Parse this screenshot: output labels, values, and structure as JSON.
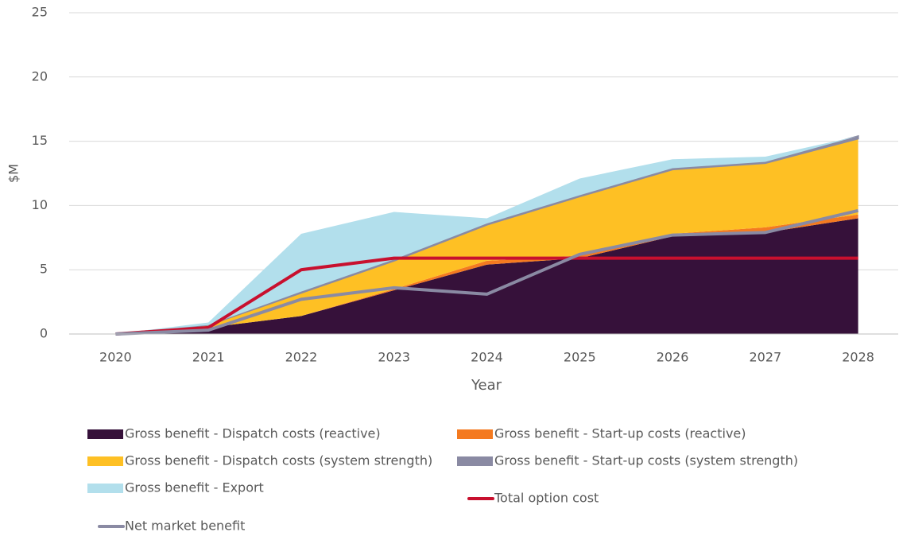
{
  "chart_data": {
    "type": "stacked_area_line",
    "x_label": "Year",
    "y_label": "$M",
    "categories": [
      "2020",
      "2021",
      "2022",
      "2023",
      "2024",
      "2025",
      "2026",
      "2027",
      "2028"
    ],
    "ylim": [
      0,
      25
    ],
    "yticks": [
      0,
      5,
      10,
      15,
      20,
      25
    ],
    "grid": true,
    "series": [
      {
        "name": "Gross benefit - Dispatch costs (reactive)",
        "kind": "area",
        "color": "#36113a",
        "values": [
          0,
          0.5,
          1.4,
          3.4,
          5.4,
          5.9,
          7.6,
          7.9,
          9.0
        ]
      },
      {
        "name": "Gross benefit - Start-up costs (reactive)",
        "kind": "area",
        "color": "#f47a20",
        "values": [
          0,
          0,
          0,
          0.1,
          0.3,
          0.2,
          0.2,
          0.4,
          0.3
        ]
      },
      {
        "name": "Gross benefit - Dispatch costs (system strength)",
        "kind": "area",
        "color": "#fec024",
        "values": [
          0,
          0.2,
          1.8,
          2.2,
          2.8,
          4.6,
          5.0,
          5.0,
          5.9
        ]
      },
      {
        "name": "Gross benefit - Start-up costs (system strength)",
        "kind": "area",
        "color": "#8a8aa3",
        "values": [
          0,
          0,
          0.1,
          0.1,
          0.1,
          0.1,
          0.1,
          0.1,
          0.2
        ]
      },
      {
        "name": "Gross benefit - Export",
        "kind": "area",
        "color": "#b2dfec",
        "values": [
          0,
          0.2,
          4.5,
          3.7,
          0.4,
          1.3,
          0.7,
          0.4,
          0
        ]
      },
      {
        "name": "Total option cost",
        "kind": "line",
        "color": "#c8102e",
        "values": [
          0,
          0.5,
          5.0,
          5.9,
          5.9,
          5.9,
          5.9,
          5.9,
          5.9
        ]
      },
      {
        "name": "Net market benefit",
        "kind": "line",
        "color": "#8a8aa3",
        "values": [
          0,
          0.3,
          2.7,
          3.6,
          3.1,
          6.2,
          7.7,
          7.9,
          9.6
        ]
      }
    ]
  }
}
